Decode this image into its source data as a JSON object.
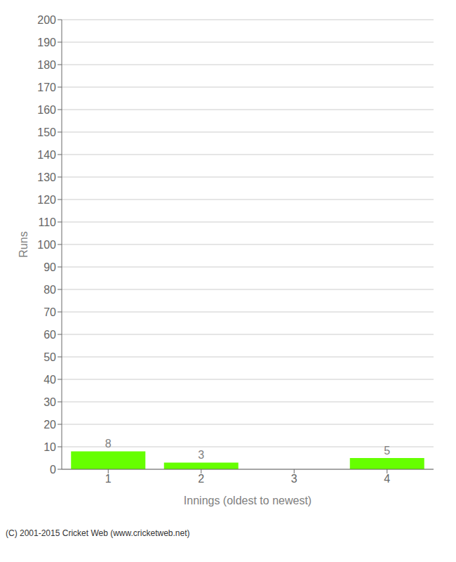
{
  "chart_data": {
    "type": "bar",
    "categories": [
      "1",
      "2",
      "3",
      "4"
    ],
    "values": [
      8,
      3,
      0,
      5
    ],
    "color": "#66ff00",
    "xlabel": "Innings (oldest to newest)",
    "ylabel": "Runs",
    "ylim": [
      0,
      200
    ],
    "yticks": [
      0,
      10,
      20,
      30,
      40,
      50,
      60,
      70,
      80,
      90,
      100,
      110,
      120,
      130,
      140,
      150,
      160,
      170,
      180,
      190,
      200
    ],
    "grid": true,
    "data_labels": true,
    "annotations": [
      "(C) 2001-2015 Cricket Web (www.cricketweb.net)"
    ]
  }
}
